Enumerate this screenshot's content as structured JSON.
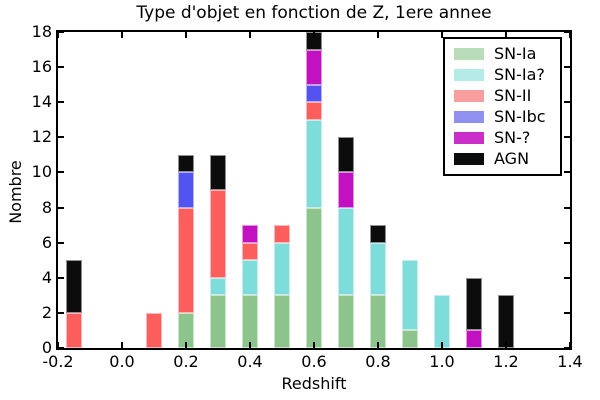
{
  "chart_data": {
    "type": "bar",
    "stacked": true,
    "title": "Type d'objet en fonction de Z, 1ere annee",
    "xlabel": "Redshift",
    "ylabel": "Nombre",
    "xlim": [
      -0.2,
      1.4
    ],
    "ylim": [
      0,
      18
    ],
    "grid": false,
    "legend_position": "upper right",
    "bar_width": 0.05,
    "x_ticks": [
      "-0.2",
      "0.0",
      "0.2",
      "0.4",
      "0.6",
      "0.8",
      "1.0",
      "1.2",
      "1.4"
    ],
    "y_ticks": [
      "0",
      "2",
      "4",
      "6",
      "8",
      "10",
      "12",
      "14",
      "16",
      "18"
    ],
    "x": [
      -0.15,
      0.1,
      0.2,
      0.3,
      0.4,
      0.5,
      0.6,
      0.7,
      0.8,
      0.9,
      1.0,
      1.1,
      1.2
    ],
    "series": [
      {
        "name": "SN-Ia",
        "color": "#8cc48c",
        "legend_color": "#b9dcb9",
        "values": [
          0,
          0,
          2,
          3,
          3,
          3,
          8,
          3,
          3,
          1,
          0,
          0,
          0
        ]
      },
      {
        "name": "SN-Ia?",
        "color": "#7edcda",
        "legend_color": "#b4ebe9",
        "values": [
          0,
          0,
          0,
          1,
          2,
          3,
          5,
          5,
          3,
          4,
          3,
          0,
          0
        ]
      },
      {
        "name": "SN-II",
        "color": "#fc5e5e",
        "legend_color": "#f99e9e",
        "values": [
          2,
          2,
          6,
          5,
          1,
          1,
          1,
          0,
          0,
          0,
          0,
          0,
          0
        ]
      },
      {
        "name": "SN-Ibc",
        "color": "#5353f2",
        "legend_color": "#9090f0",
        "values": [
          0,
          0,
          2,
          0,
          0,
          0,
          1,
          0,
          0,
          0,
          0,
          0,
          0
        ]
      },
      {
        "name": "SN-?",
        "color": "#c111c1",
        "legend_color": "#ca2fca",
        "values": [
          0,
          0,
          0,
          0,
          1,
          0,
          2,
          2,
          0,
          0,
          0,
          1,
          0
        ]
      },
      {
        "name": "AGN",
        "color": "#0c0c0c",
        "legend_color": "#0c0c0c",
        "values": [
          3,
          0,
          1,
          2,
          0,
          0,
          1,
          2,
          1,
          0,
          0,
          3,
          3
        ]
      }
    ],
    "bar_totals": [
      5,
      2,
      11,
      11,
      7,
      7,
      18,
      12,
      7,
      5,
      3,
      4,
      3
    ]
  }
}
